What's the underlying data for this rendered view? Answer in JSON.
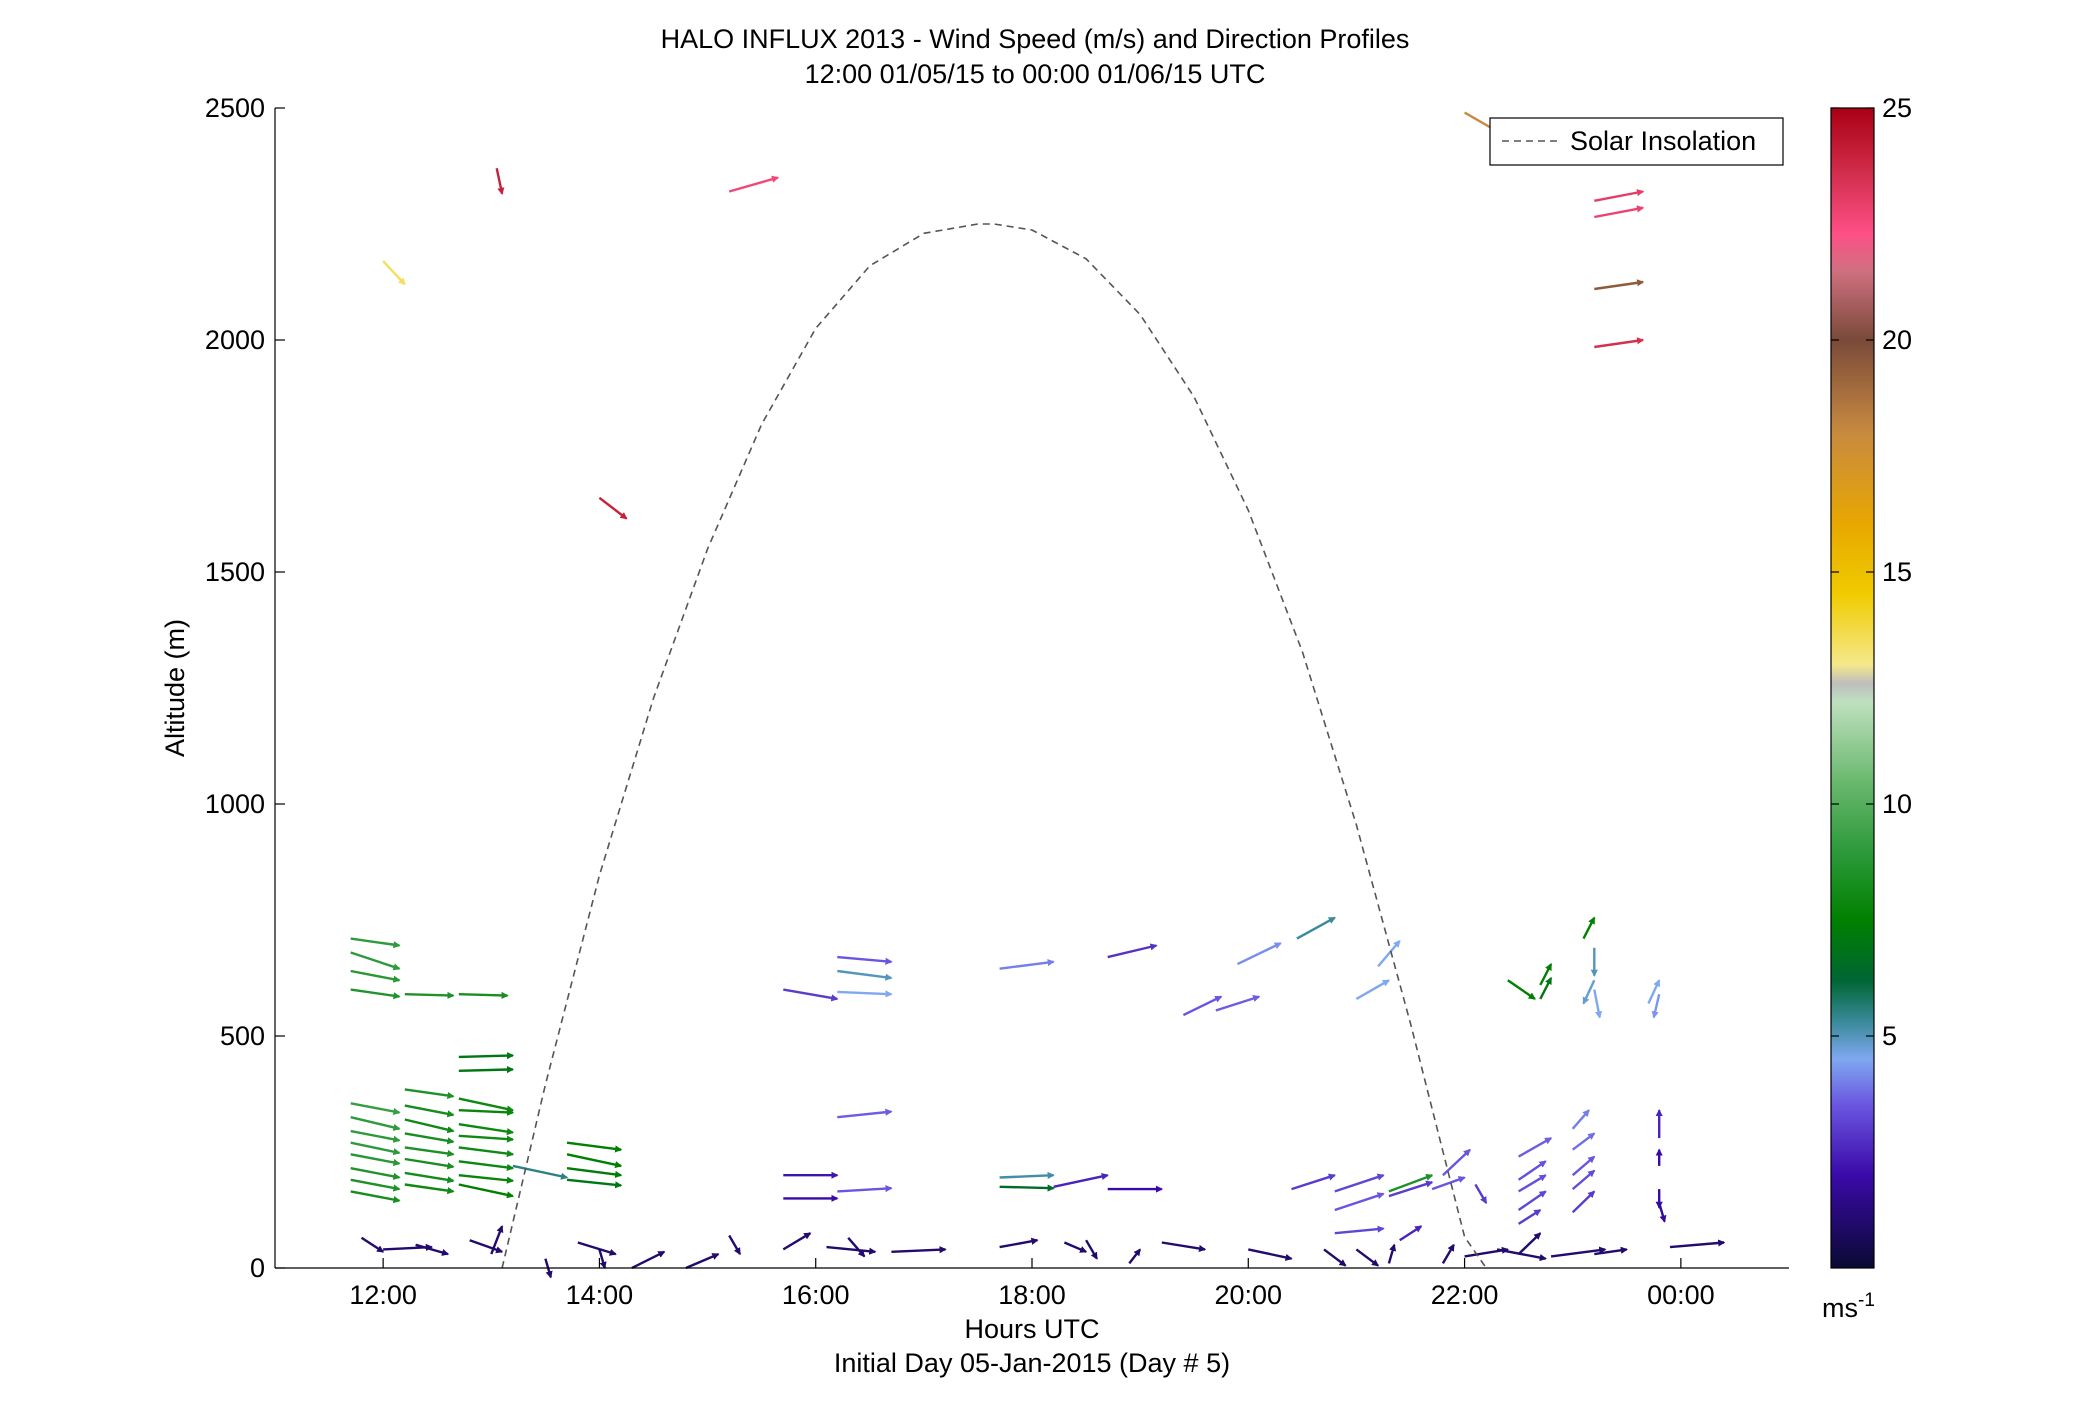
{
  "chart_data": {
    "type": "scatter",
    "title": "HALO INFLUX 2013 - Wind Speed (m/s) and Direction Profiles",
    "subtitle": "12:00 01/05/15 to 00:00 01/06/15  UTC",
    "xlabel": "Hours UTC",
    "xlabel2": "Initial Day 05-Jan-2015 (Day # 5)",
    "ylabel": "Altitude (m)",
    "xlim": [
      11.0,
      25.0
    ],
    "ylim": [
      0,
      2500
    ],
    "x_ticks": [
      {
        "value": 12,
        "label": "12:00"
      },
      {
        "value": 14,
        "label": "14:00"
      },
      {
        "value": 16,
        "label": "16:00"
      },
      {
        "value": 18,
        "label": "18:00"
      },
      {
        "value": 20,
        "label": "20:00"
      },
      {
        "value": 22,
        "label": "22:00"
      },
      {
        "value": 24,
        "label": "00:00"
      }
    ],
    "y_ticks": [
      {
        "value": 0,
        "label": "0"
      },
      {
        "value": 500,
        "label": "500"
      },
      {
        "value": 1000,
        "label": "1000"
      },
      {
        "value": 1500,
        "label": "1500"
      },
      {
        "value": 2000,
        "label": "2000"
      },
      {
        "value": 2500,
        "label": "2500"
      }
    ],
    "legend": {
      "position": "top-right",
      "entries": [
        "Solar Insolation"
      ]
    },
    "colorbar": {
      "min": 0,
      "max": 25,
      "ticks": [
        {
          "value": 5,
          "label": "5"
        },
        {
          "value": 10,
          "label": "10"
        },
        {
          "value": 15,
          "label": "15"
        },
        {
          "value": 20,
          "label": "20"
        },
        {
          "value": 25,
          "label": "25"
        }
      ],
      "unit_base": "ms",
      "unit_exp": "-1",
      "stops": [
        {
          "v": 0,
          "c": "#0a0a33"
        },
        {
          "v": 2,
          "c": "#3a0aa8"
        },
        {
          "v": 3.5,
          "c": "#6a55e0"
        },
        {
          "v": 4.5,
          "c": "#7fa8f0"
        },
        {
          "v": 5.3,
          "c": "#3a8a9a"
        },
        {
          "v": 6.2,
          "c": "#006633"
        },
        {
          "v": 7.5,
          "c": "#008000"
        },
        {
          "v": 9,
          "c": "#2e9a3c"
        },
        {
          "v": 10.5,
          "c": "#6ab96e"
        },
        {
          "v": 12.2,
          "c": "#bfe0bf"
        },
        {
          "v": 12.6,
          "c": "#bdbdbd"
        },
        {
          "v": 13,
          "c": "#f5e88c"
        },
        {
          "v": 14.5,
          "c": "#f0cc00"
        },
        {
          "v": 16,
          "c": "#e8a800"
        },
        {
          "v": 18,
          "c": "#c88a40"
        },
        {
          "v": 20,
          "c": "#7a4a3a"
        },
        {
          "v": 21.5,
          "c": "#d07080"
        },
        {
          "v": 22.3,
          "c": "#ff4f86"
        },
        {
          "v": 23.5,
          "c": "#d43050"
        },
        {
          "v": 25,
          "c": "#aa0014"
        }
      ]
    },
    "solar_insolation": {
      "x": [
        13.1,
        13.5,
        14.0,
        14.5,
        15.0,
        15.5,
        16.0,
        16.5,
        17.0,
        17.5,
        17.65,
        18.0,
        18.5,
        19.0,
        19.5,
        20.0,
        20.5,
        21.0,
        21.5,
        22.0,
        22.2
      ],
      "y": [
        0,
        395,
        846,
        1228,
        1550,
        1818,
        2025,
        2160,
        2230,
        2250,
        2250,
        2237,
        2175,
        2055,
        1877,
        1633,
        1328,
        955,
        527,
        67,
        0
      ]
    },
    "wind_vectors": [
      {
        "t": 12.0,
        "z": 2170,
        "s": 13.5,
        "dt": 0.2,
        "dz": -50
      },
      {
        "t": 13.05,
        "z": 2370,
        "s": 24.0,
        "dt": 0.05,
        "dz": -55
      },
      {
        "t": 15.2,
        "z": 2320,
        "s": 22.6,
        "dt": 0.45,
        "dz": 30
      },
      {
        "t": 14.0,
        "z": 1660,
        "s": 24.0,
        "dt": 0.25,
        "dz": -45
      },
      {
        "t": 22.0,
        "z": 2490,
        "s": 18.0,
        "dt": 0.3,
        "dz": -40
      },
      {
        "t": 23.2,
        "z": 2300,
        "s": 23.0,
        "dt": 0.45,
        "dz": 20
      },
      {
        "t": 23.2,
        "z": 2265,
        "s": 22.8,
        "dt": 0.45,
        "dz": 20
      },
      {
        "t": 23.2,
        "z": 2110,
        "s": 19.5,
        "dt": 0.45,
        "dz": 15
      },
      {
        "t": 23.2,
        "z": 1985,
        "s": 23.5,
        "dt": 0.45,
        "dz": 15
      },
      {
        "t": 11.7,
        "z": 710,
        "s": 9.0,
        "dt": 0.45,
        "dz": -15
      },
      {
        "t": 11.7,
        "z": 680,
        "s": 9.0,
        "dt": 0.45,
        "dz": -35
      },
      {
        "t": 11.7,
        "z": 640,
        "s": 8.8,
        "dt": 0.45,
        "dz": -20
      },
      {
        "t": 11.7,
        "z": 600,
        "s": 8.6,
        "dt": 0.45,
        "dz": -15
      },
      {
        "t": 12.2,
        "z": 590,
        "s": 8.5,
        "dt": 0.45,
        "dz": -3
      },
      {
        "t": 12.7,
        "z": 590,
        "s": 8.3,
        "dt": 0.45,
        "dz": -3
      },
      {
        "t": 12.7,
        "z": 455,
        "s": 7.0,
        "dt": 0.5,
        "dz": 3
      },
      {
        "t": 12.7,
        "z": 425,
        "s": 7.0,
        "dt": 0.5,
        "dz": 3
      },
      {
        "t": 11.7,
        "z": 355,
        "s": 9.2,
        "dt": 0.45,
        "dz": -20
      },
      {
        "t": 11.7,
        "z": 325,
        "s": 9.0,
        "dt": 0.45,
        "dz": -25
      },
      {
        "t": 11.7,
        "z": 295,
        "s": 9.0,
        "dt": 0.45,
        "dz": -20
      },
      {
        "t": 11.7,
        "z": 270,
        "s": 9.0,
        "dt": 0.45,
        "dz": -22
      },
      {
        "t": 11.7,
        "z": 245,
        "s": 8.8,
        "dt": 0.45,
        "dz": -20
      },
      {
        "t": 11.7,
        "z": 215,
        "s": 8.6,
        "dt": 0.45,
        "dz": -20
      },
      {
        "t": 11.7,
        "z": 190,
        "s": 8.5,
        "dt": 0.45,
        "dz": -20
      },
      {
        "t": 11.7,
        "z": 165,
        "s": 8.3,
        "dt": 0.45,
        "dz": -20
      },
      {
        "t": 12.2,
        "z": 385,
        "s": 8.5,
        "dt": 0.45,
        "dz": -15
      },
      {
        "t": 12.2,
        "z": 350,
        "s": 8.2,
        "dt": 0.45,
        "dz": -20
      },
      {
        "t": 12.2,
        "z": 320,
        "s": 8.0,
        "dt": 0.45,
        "dz": -25
      },
      {
        "t": 12.2,
        "z": 290,
        "s": 8.3,
        "dt": 0.45,
        "dz": -18
      },
      {
        "t": 12.2,
        "z": 260,
        "s": 8.4,
        "dt": 0.45,
        "dz": -15
      },
      {
        "t": 12.2,
        "z": 235,
        "s": 8.3,
        "dt": 0.45,
        "dz": -17
      },
      {
        "t": 12.2,
        "z": 205,
        "s": 8.2,
        "dt": 0.45,
        "dz": -17
      },
      {
        "t": 12.2,
        "z": 180,
        "s": 8.0,
        "dt": 0.45,
        "dz": -15
      },
      {
        "t": 12.7,
        "z": 365,
        "s": 8.0,
        "dt": 0.5,
        "dz": -25
      },
      {
        "t": 12.7,
        "z": 340,
        "s": 7.8,
        "dt": 0.5,
        "dz": -5
      },
      {
        "t": 12.7,
        "z": 310,
        "s": 7.9,
        "dt": 0.5,
        "dz": -18
      },
      {
        "t": 12.7,
        "z": 285,
        "s": 8.0,
        "dt": 0.5,
        "dz": -8
      },
      {
        "t": 12.7,
        "z": 260,
        "s": 8.0,
        "dt": 0.5,
        "dz": -15
      },
      {
        "t": 12.7,
        "z": 230,
        "s": 7.9,
        "dt": 0.5,
        "dz": -15
      },
      {
        "t": 12.7,
        "z": 200,
        "s": 7.8,
        "dt": 0.5,
        "dz": -12
      },
      {
        "t": 12.7,
        "z": 180,
        "s": 7.5,
        "dt": 0.5,
        "dz": -25
      },
      {
        "t": 13.2,
        "z": 220,
        "s": 5.5,
        "dt": 0.5,
        "dz": -25
      },
      {
        "t": 13.7,
        "z": 270,
        "s": 7.5,
        "dt": 0.5,
        "dz": -15
      },
      {
        "t": 13.7,
        "z": 245,
        "s": 7.5,
        "dt": 0.5,
        "dz": -25
      },
      {
        "t": 13.7,
        "z": 215,
        "s": 7.3,
        "dt": 0.5,
        "dz": -15
      },
      {
        "t": 13.7,
        "z": 190,
        "s": 7.0,
        "dt": 0.5,
        "dz": -12
      },
      {
        "t": 15.7,
        "z": 600,
        "s": 3.0,
        "dt": 0.5,
        "dz": -20
      },
      {
        "t": 16.2,
        "z": 670,
        "s": 3.5,
        "dt": 0.5,
        "dz": -10
      },
      {
        "t": 16.2,
        "z": 640,
        "s": 5.0,
        "dt": 0.5,
        "dz": -15
      },
      {
        "t": 16.2,
        "z": 595,
        "s": 4.5,
        "dt": 0.5,
        "dz": -5
      },
      {
        "t": 16.2,
        "z": 325,
        "s": 3.6,
        "dt": 0.5,
        "dz": 12
      },
      {
        "t": 15.7,
        "z": 200,
        "s": 2.2,
        "dt": 0.5,
        "dz": 0
      },
      {
        "t": 15.7,
        "z": 150,
        "s": 2.0,
        "dt": 0.5,
        "dz": 0
      },
      {
        "t": 16.2,
        "z": 165,
        "s": 3.5,
        "dt": 0.5,
        "dz": 7
      },
      {
        "t": 17.7,
        "z": 645,
        "s": 4.0,
        "dt": 0.5,
        "dz": 15
      },
      {
        "t": 18.7,
        "z": 670,
        "s": 2.8,
        "dt": 0.45,
        "dz": 25
      },
      {
        "t": 19.4,
        "z": 545,
        "s": 3.5,
        "dt": 0.35,
        "dz": 40
      },
      {
        "t": 19.7,
        "z": 555,
        "s": 3.6,
        "dt": 0.4,
        "dz": 30
      },
      {
        "t": 19.9,
        "z": 655,
        "s": 4.2,
        "dt": 0.4,
        "dz": 45
      },
      {
        "t": 20.45,
        "z": 710,
        "s": 5.3,
        "dt": 0.35,
        "dz": 45
      },
      {
        "t": 21.2,
        "z": 650,
        "s": 4.5,
        "dt": 0.2,
        "dz": 55
      },
      {
        "t": 21.0,
        "z": 580,
        "s": 4.5,
        "dt": 0.3,
        "dz": 40
      },
      {
        "t": 17.7,
        "z": 195,
        "s": 5.2,
        "dt": 0.5,
        "dz": 5
      },
      {
        "t": 17.7,
        "z": 175,
        "s": 6.5,
        "dt": 0.5,
        "dz": -3
      },
      {
        "t": 18.2,
        "z": 175,
        "s": 2.5,
        "dt": 0.5,
        "dz": 25
      },
      {
        "t": 18.7,
        "z": 170,
        "s": 2.0,
        "dt": 0.5,
        "dz": 0
      },
      {
        "t": 20.4,
        "z": 170,
        "s": 3.0,
        "dt": 0.4,
        "dz": 30
      },
      {
        "t": 20.8,
        "z": 165,
        "s": 3.2,
        "dt": 0.45,
        "dz": 35
      },
      {
        "t": 20.8,
        "z": 125,
        "s": 3.5,
        "dt": 0.45,
        "dz": 35
      },
      {
        "t": 21.3,
        "z": 165,
        "s": 8.5,
        "dt": 0.4,
        "dz": 35
      },
      {
        "t": 21.3,
        "z": 155,
        "s": 3.0,
        "dt": 0.4,
        "dz": 30
      },
      {
        "t": 20.8,
        "z": 75,
        "s": 3.2,
        "dt": 0.45,
        "dz": 10
      },
      {
        "t": 21.7,
        "z": 170,
        "s": 3.5,
        "dt": 0.3,
        "dz": 25
      },
      {
        "t": 21.8,
        "z": 200,
        "s": 3.5,
        "dt": 0.25,
        "dz": 55
      },
      {
        "t": 21.4,
        "z": 60,
        "s": 2.5,
        "dt": 0.2,
        "dz": 30
      },
      {
        "t": 22.1,
        "z": 180,
        "s": 3.0,
        "dt": 0.1,
        "dz": -40
      },
      {
        "t": 22.4,
        "z": 620,
        "s": 7.5,
        "dt": 0.25,
        "dz": -40
      },
      {
        "t": 22.7,
        "z": 610,
        "s": 7.5,
        "dt": 0.1,
        "dz": 45
      },
      {
        "t": 22.7,
        "z": 580,
        "s": 7.0,
        "dt": 0.1,
        "dz": 45
      },
      {
        "t": 23.1,
        "z": 710,
        "s": 7.5,
        "dt": 0.1,
        "dz": 45
      },
      {
        "t": 23.2,
        "z": 690,
        "s": 5.0,
        "dt": 0.0,
        "dz": -60
      },
      {
        "t": 23.2,
        "z": 620,
        "s": 4.8,
        "dt": -0.1,
        "dz": -50
      },
      {
        "t": 23.2,
        "z": 600,
        "s": 4.5,
        "dt": 0.05,
        "dz": -60
      },
      {
        "t": 23.7,
        "z": 570,
        "s": 4.5,
        "dt": 0.1,
        "dz": 50
      },
      {
        "t": 23.8,
        "z": 590,
        "s": 4.3,
        "dt": -0.05,
        "dz": -50
      },
      {
        "t": 22.5,
        "z": 240,
        "s": 3.6,
        "dt": 0.3,
        "dz": 40
      },
      {
        "t": 22.5,
        "z": 190,
        "s": 3.4,
        "dt": 0.25,
        "dz": 40
      },
      {
        "t": 22.5,
        "z": 165,
        "s": 3.4,
        "dt": 0.25,
        "dz": 35
      },
      {
        "t": 22.5,
        "z": 125,
        "s": 3.2,
        "dt": 0.25,
        "dz": 40
      },
      {
        "t": 22.5,
        "z": 95,
        "s": 3.0,
        "dt": 0.2,
        "dz": 30
      },
      {
        "t": 23.0,
        "z": 300,
        "s": 4.0,
        "dt": 0.15,
        "dz": 40
      },
      {
        "t": 23.0,
        "z": 255,
        "s": 3.8,
        "dt": 0.2,
        "dz": 35
      },
      {
        "t": 23.0,
        "z": 200,
        "s": 3.5,
        "dt": 0.2,
        "dz": 40
      },
      {
        "t": 23.0,
        "z": 170,
        "s": 3.3,
        "dt": 0.2,
        "dz": 40
      },
      {
        "t": 23.0,
        "z": 120,
        "s": 3.0,
        "dt": 0.2,
        "dz": 45
      },
      {
        "t": 23.8,
        "z": 280,
        "s": 2.5,
        "dt": 0.0,
        "dz": 60
      },
      {
        "t": 23.8,
        "z": 220,
        "s": 2.0,
        "dt": 0.0,
        "dz": 35
      },
      {
        "t": 23.8,
        "z": 170,
        "s": 2.0,
        "dt": 0.0,
        "dz": -40
      },
      {
        "t": 23.8,
        "z": 140,
        "s": 1.8,
        "dt": 0.05,
        "dz": -40
      },
      {
        "t": 11.8,
        "z": 65,
        "s": 1.0,
        "dt": 0.2,
        "dz": -30
      },
      {
        "t": 12.0,
        "z": 40,
        "s": 1.0,
        "dt": 0.45,
        "dz": 5
      },
      {
        "t": 12.3,
        "z": 50,
        "s": 1.0,
        "dt": 0.3,
        "dz": -20
      },
      {
        "t": 12.8,
        "z": 60,
        "s": 1.0,
        "dt": 0.3,
        "dz": -25
      },
      {
        "t": 13.0,
        "z": 30,
        "s": 1.0,
        "dt": 0.1,
        "dz": 60
      },
      {
        "t": 13.5,
        "z": 20,
        "s": 1.0,
        "dt": 0.05,
        "dz": -40
      },
      {
        "t": 13.8,
        "z": 55,
        "s": 1.0,
        "dt": 0.35,
        "dz": -25
      },
      {
        "t": 14.0,
        "z": 40,
        "s": 1.0,
        "dt": 0.05,
        "dz": -40
      },
      {
        "t": 14.3,
        "z": 0,
        "s": 1.0,
        "dt": 0.3,
        "dz": 35
      },
      {
        "t": 14.8,
        "z": 0,
        "s": 1.0,
        "dt": 0.3,
        "dz": 30
      },
      {
        "t": 15.2,
        "z": 70,
        "s": 1.0,
        "dt": 0.1,
        "dz": -40
      },
      {
        "t": 15.7,
        "z": 40,
        "s": 1.0,
        "dt": 0.25,
        "dz": 35
      },
      {
        "t": 16.1,
        "z": 45,
        "s": 1.0,
        "dt": 0.45,
        "dz": -10
      },
      {
        "t": 16.3,
        "z": 65,
        "s": 1.0,
        "dt": 0.15,
        "dz": -40
      },
      {
        "t": 16.7,
        "z": 35,
        "s": 1.0,
        "dt": 0.5,
        "dz": 5
      },
      {
        "t": 17.7,
        "z": 45,
        "s": 1.0,
        "dt": 0.35,
        "dz": 15
      },
      {
        "t": 18.3,
        "z": 55,
        "s": 1.0,
        "dt": 0.2,
        "dz": -20
      },
      {
        "t": 18.5,
        "z": 60,
        "s": 1.0,
        "dt": 0.1,
        "dz": -40
      },
      {
        "t": 18.9,
        "z": 10,
        "s": 1.0,
        "dt": 0.1,
        "dz": 30
      },
      {
        "t": 19.2,
        "z": 55,
        "s": 1.0,
        "dt": 0.4,
        "dz": -15
      },
      {
        "t": 20.0,
        "z": 40,
        "s": 1.0,
        "dt": 0.4,
        "dz": -20
      },
      {
        "t": 20.7,
        "z": 40,
        "s": 1.0,
        "dt": 0.2,
        "dz": -35
      },
      {
        "t": 21.0,
        "z": 40,
        "s": 1.0,
        "dt": 0.2,
        "dz": -35
      },
      {
        "t": 21.3,
        "z": 10,
        "s": 1.0,
        "dt": 0.05,
        "dz": 40
      },
      {
        "t": 21.8,
        "z": 10,
        "s": 1.0,
        "dt": 0.1,
        "dz": 40
      },
      {
        "t": 22.0,
        "z": 25,
        "s": 1.0,
        "dt": 0.4,
        "dz": 15
      },
      {
        "t": 22.3,
        "z": 40,
        "s": 1.0,
        "dt": 0.45,
        "dz": -20
      },
      {
        "t": 22.5,
        "z": 30,
        "s": 1.0,
        "dt": 0.2,
        "dz": 45
      },
      {
        "t": 22.8,
        "z": 25,
        "s": 1.0,
        "dt": 0.5,
        "dz": 15
      },
      {
        "t": 23.2,
        "z": 30,
        "s": 1.0,
        "dt": 0.3,
        "dz": 10
      },
      {
        "t": 23.9,
        "z": 45,
        "s": 1.0,
        "dt": 0.5,
        "dz": 10
      }
    ]
  }
}
